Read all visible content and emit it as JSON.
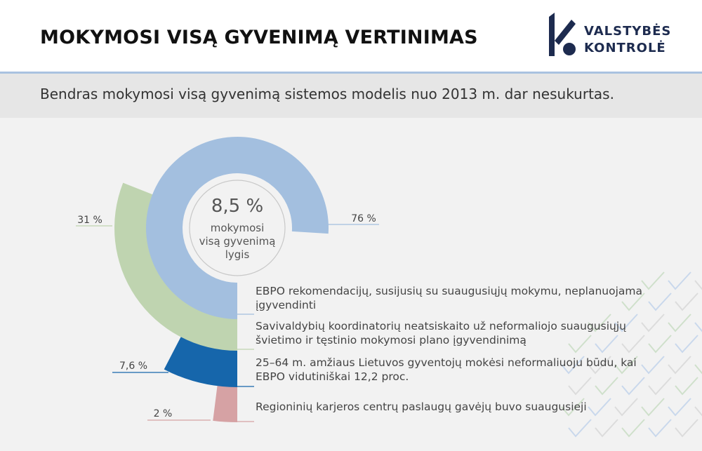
{
  "header": {
    "title": "MOKYMOSI VISĄ GYVENIMĄ VERTINIMAS",
    "logo_line1": "VALSTYBĖS",
    "logo_line2": "KONTROLĖ",
    "logo_icon": "valstybes-kontrole-logo-icon"
  },
  "banner": {
    "text": "Bendras mokymosi visą gyvenimą sistemos modelis nuo 2013 m. dar nesukurtas."
  },
  "colors": {
    "ebpo": "#a3bfdf",
    "savivaldybes": "#bfd4b0",
    "gyventojai": "#1666ab",
    "karjeros": "#d6a2a4",
    "brand": "#1d2b4f"
  },
  "chart_data": {
    "type": "pie",
    "subtype": "concentric-radial-arcs",
    "center": {
      "value": "8,5 %",
      "label": [
        "mokymosi",
        "visą gyvenimą",
        "lygis"
      ]
    },
    "series": [
      {
        "value": 76,
        "label": "76 %",
        "description": "EBPO rekomendacijų, susijusių su suaugusiųjų mokymu, neplanuojama įgyvendinti",
        "color": "#a3bfdf"
      },
      {
        "value": 31,
        "label": "31 %",
        "description": "Savivaldybių koordinatorių neatsiskaito už neformaliojo suaugusiųjų švietimo ir tęstinio mokymosi plano įgyvendinimą",
        "color": "#bfd4b0"
      },
      {
        "value": 7.6,
        "label": "7,6 %",
        "description": "25–64 m. amžiaus Lietuvos gyventojų mokėsi neformaliuoju būdu, kai EBPO vidutiniškai 12,2 proc.",
        "color": "#1666ab"
      },
      {
        "value": 2,
        "label": "2 %",
        "description": "Regioninių karjeros centrų paslaugų gavėjų buvo suaugusieji",
        "color": "#d6a2a4"
      }
    ]
  }
}
